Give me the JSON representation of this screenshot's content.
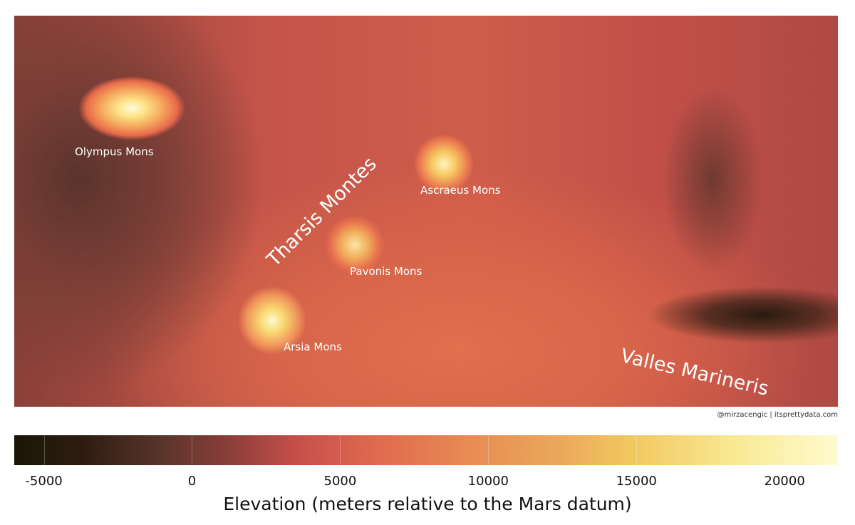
{
  "map": {
    "labels": {
      "olympus": "Olympus Mons",
      "ascraeus": "Ascraeus Mons",
      "pavonis": "Pavonis Mons",
      "arsia": "Arsia Mons",
      "tharsis": "Tharsis Montes",
      "valles": "Valles Marineris"
    },
    "credit": "@mirzacengic | itsprettydata.com"
  },
  "colorbar": {
    "title": "Elevation (meters relative to the Mars datum)",
    "range": [
      -6000,
      21800
    ],
    "ticks": [
      {
        "value": -5000,
        "label": "-5000"
      },
      {
        "value": 0,
        "label": "0"
      },
      {
        "value": 5000,
        "label": "5000"
      },
      {
        "value": 10000,
        "label": "10000"
      },
      {
        "value": 15000,
        "label": "15000"
      },
      {
        "value": 20000,
        "label": "20000"
      }
    ],
    "colors": [
      "#1c1608",
      "#8a3e3a",
      "#c54e4a",
      "#e06a4e",
      "#eaa85a",
      "#f2c860",
      "#fffbd0"
    ]
  }
}
